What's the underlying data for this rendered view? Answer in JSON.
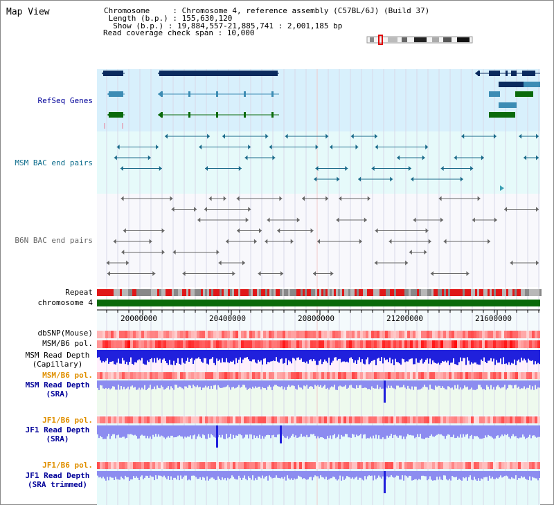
{
  "page": {
    "title": "Map View"
  },
  "info": {
    "chromosome": "Chromosome     : Chromosome 4, reference assembly (C57BL/6J) (Build 37)",
    "length": " Length (b.p.) : 155,630,120",
    "show": "  Show (b.p.) : 19,884,557-21,885,741 : 2,001,185 bp",
    "coverage": "Read coverage check span : 10,000"
  },
  "tracks": {
    "refseq": "RefSeq Genes",
    "msm_bac": "MSM BAC end pairs",
    "b6n_bac": "B6N BAC end pairs",
    "repeat": "Repeat",
    "chromosome": "chromosome 4",
    "dbsnp": "dbSNP(Mouse)",
    "msm_b6_pol": "MSM/B6 pol.",
    "msm_depth_cap_1": "MSM Read Depth",
    "msm_depth_cap_2": "(Capillary)",
    "msm_b6_pol_2": "MSM/B6 pol.",
    "msm_depth_sra_1": "MSM Read Depth",
    "msm_depth_sra_2": "(SRA)",
    "jf1_b6_pol": "JF1/B6 pol.",
    "jf1_depth_sra_1": "JF1 Read Depth",
    "jf1_depth_sra_2": "(SRA)",
    "jf1_b6_pol_2": "JF1/B6 pol.",
    "jf1_depth_trim_1": "JF1 Read Depth",
    "jf1_depth_trim_2": "(SRA trimmed)"
  },
  "axis": {
    "ticks": [
      "20000000",
      "20400000",
      "20800000",
      "21200000",
      "21600000"
    ]
  },
  "colors": {
    "refseq_bg": "#d8f0fc",
    "msm_bg": "#e6fafa",
    "b6n_bg": "#f8f8fc",
    "msm_sra_bg": "#eefaee",
    "jf1_bg": "#e6fafa",
    "refseq_dark": "#0a2a5e",
    "refseq_mid": "#3c8cb4",
    "refseq_green": "#0a6a0a",
    "msm_bac": "#1a6a8a",
    "b6n_bac": "#666666",
    "chromosome_bar": "#0a6a0a",
    "depth_dark": "#2020dc",
    "depth_light": "#8c8cf0",
    "label_blue": "#000099",
    "label_orange": "#e09000"
  }
}
